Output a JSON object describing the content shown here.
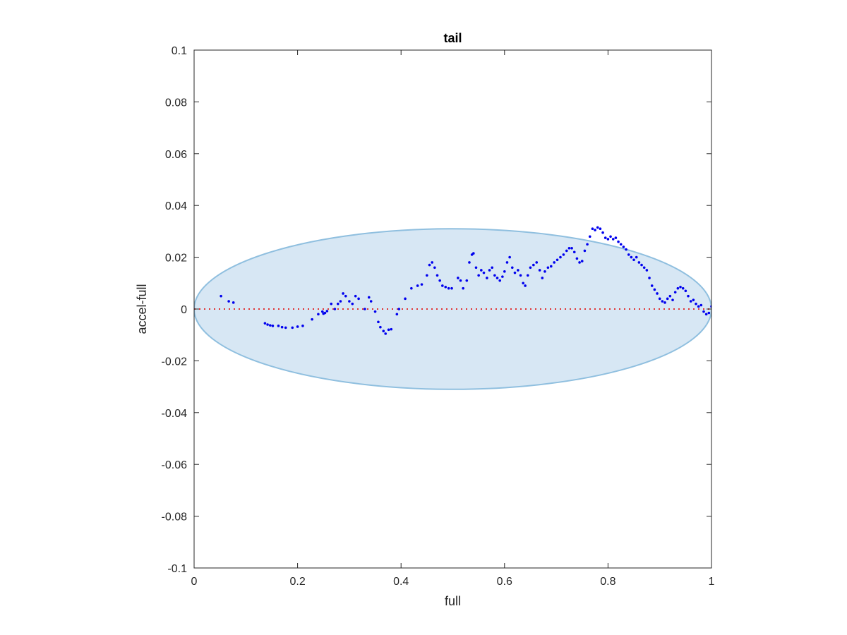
{
  "chart_data": {
    "type": "scatter",
    "title": "tail",
    "xlabel": "full",
    "ylabel": "accel-full",
    "xlim": [
      0,
      1
    ],
    "ylim": [
      -0.1,
      0.1
    ],
    "xticks": [
      0,
      0.2,
      0.4,
      0.6,
      0.8,
      1
    ],
    "xtick_labels": [
      "0",
      "0.2",
      "0.4",
      "0.6",
      "0.8",
      "1"
    ],
    "yticks": [
      -0.1,
      -0.08,
      -0.06,
      -0.04,
      -0.02,
      0,
      0.02,
      0.04,
      0.06,
      0.08,
      0.1
    ],
    "ytick_labels": [
      "-0.1",
      "-0.08",
      "-0.06",
      "-0.04",
      "-0.02",
      "0",
      "0.02",
      "0.04",
      "0.06",
      "0.08",
      "0.1"
    ],
    "grid": false,
    "reference_line": {
      "y": 0,
      "color": "#e03030",
      "style": "dotted"
    },
    "ellipse": {
      "cx": 0.5,
      "cy": 0,
      "rx": 0.5,
      "ry": 0.031,
      "fill": "#d7e7f4",
      "stroke": "#8fbfdf"
    },
    "point_color": "#0000ee",
    "points": [
      [
        0.052,
        0.005
      ],
      [
        0.067,
        0.003
      ],
      [
        0.076,
        0.0025
      ],
      [
        0.137,
        -0.0055
      ],
      [
        0.142,
        -0.006
      ],
      [
        0.147,
        -0.0063
      ],
      [
        0.152,
        -0.0065
      ],
      [
        0.163,
        -0.0065
      ],
      [
        0.17,
        -0.007
      ],
      [
        0.177,
        -0.0072
      ],
      [
        0.19,
        -0.0072
      ],
      [
        0.2,
        -0.0068
      ],
      [
        0.21,
        -0.0065
      ],
      [
        0.228,
        -0.004
      ],
      [
        0.24,
        -0.002
      ],
      [
        0.248,
        -0.001
      ],
      [
        0.25,
        -0.0018
      ],
      [
        0.253,
        -0.0015
      ],
      [
        0.257,
        -0.0008
      ],
      [
        0.265,
        0.002
      ],
      [
        0.272,
        0.0
      ],
      [
        0.278,
        0.002
      ],
      [
        0.283,
        0.003
      ],
      [
        0.288,
        0.006
      ],
      [
        0.293,
        0.005
      ],
      [
        0.3,
        0.003
      ],
      [
        0.306,
        0.002
      ],
      [
        0.312,
        0.005
      ],
      [
        0.318,
        0.004
      ],
      [
        0.33,
        0.0
      ],
      [
        0.338,
        0.0045
      ],
      [
        0.342,
        0.003
      ],
      [
        0.35,
        -0.001
      ],
      [
        0.356,
        -0.005
      ],
      [
        0.36,
        -0.007
      ],
      [
        0.366,
        -0.0085
      ],
      [
        0.37,
        -0.0095
      ],
      [
        0.376,
        -0.008
      ],
      [
        0.381,
        -0.0078
      ],
      [
        0.392,
        -0.002
      ],
      [
        0.396,
        0.0
      ],
      [
        0.408,
        0.004
      ],
      [
        0.42,
        0.008
      ],
      [
        0.432,
        0.009
      ],
      [
        0.44,
        0.0095
      ],
      [
        0.45,
        0.013
      ],
      [
        0.455,
        0.017
      ],
      [
        0.46,
        0.018
      ],
      [
        0.465,
        0.016
      ],
      [
        0.47,
        0.013
      ],
      [
        0.475,
        0.011
      ],
      [
        0.48,
        0.009
      ],
      [
        0.486,
        0.0085
      ],
      [
        0.492,
        0.008
      ],
      [
        0.498,
        0.008
      ],
      [
        0.51,
        0.012
      ],
      [
        0.515,
        0.011
      ],
      [
        0.52,
        0.008
      ],
      [
        0.527,
        0.011
      ],
      [
        0.532,
        0.018
      ],
      [
        0.537,
        0.021
      ],
      [
        0.54,
        0.0215
      ],
      [
        0.545,
        0.016
      ],
      [
        0.55,
        0.013
      ],
      [
        0.555,
        0.015
      ],
      [
        0.56,
        0.014
      ],
      [
        0.566,
        0.012
      ],
      [
        0.571,
        0.015
      ],
      [
        0.576,
        0.016
      ],
      [
        0.581,
        0.013
      ],
      [
        0.586,
        0.012
      ],
      [
        0.591,
        0.011
      ],
      [
        0.596,
        0.0125
      ],
      [
        0.6,
        0.0145
      ],
      [
        0.605,
        0.018
      ],
      [
        0.61,
        0.02
      ],
      [
        0.615,
        0.016
      ],
      [
        0.62,
        0.014
      ],
      [
        0.626,
        0.015
      ],
      [
        0.631,
        0.013
      ],
      [
        0.636,
        0.01
      ],
      [
        0.64,
        0.009
      ],
      [
        0.645,
        0.013
      ],
      [
        0.65,
        0.016
      ],
      [
        0.656,
        0.017
      ],
      [
        0.662,
        0.018
      ],
      [
        0.668,
        0.015
      ],
      [
        0.673,
        0.012
      ],
      [
        0.678,
        0.0145
      ],
      [
        0.684,
        0.016
      ],
      [
        0.69,
        0.0165
      ],
      [
        0.696,
        0.018
      ],
      [
        0.702,
        0.019
      ],
      [
        0.708,
        0.02
      ],
      [
        0.714,
        0.021
      ],
      [
        0.72,
        0.0225
      ],
      [
        0.725,
        0.0235
      ],
      [
        0.73,
        0.0235
      ],
      [
        0.735,
        0.022
      ],
      [
        0.74,
        0.0195
      ],
      [
        0.745,
        0.018
      ],
      [
        0.75,
        0.0185
      ],
      [
        0.755,
        0.0225
      ],
      [
        0.76,
        0.025
      ],
      [
        0.765,
        0.028
      ],
      [
        0.77,
        0.031
      ],
      [
        0.775,
        0.0305
      ],
      [
        0.78,
        0.0315
      ],
      [
        0.785,
        0.031
      ],
      [
        0.79,
        0.0295
      ],
      [
        0.795,
        0.0275
      ],
      [
        0.8,
        0.027
      ],
      [
        0.805,
        0.028
      ],
      [
        0.81,
        0.027
      ],
      [
        0.815,
        0.0275
      ],
      [
        0.82,
        0.026
      ],
      [
        0.825,
        0.025
      ],
      [
        0.83,
        0.024
      ],
      [
        0.835,
        0.023
      ],
      [
        0.84,
        0.021
      ],
      [
        0.845,
        0.02
      ],
      [
        0.85,
        0.019
      ],
      [
        0.855,
        0.02
      ],
      [
        0.86,
        0.018
      ],
      [
        0.865,
        0.017
      ],
      [
        0.87,
        0.016
      ],
      [
        0.875,
        0.015
      ],
      [
        0.88,
        0.012
      ],
      [
        0.885,
        0.009
      ],
      [
        0.89,
        0.0075
      ],
      [
        0.895,
        0.006
      ],
      [
        0.9,
        0.004
      ],
      [
        0.905,
        0.003
      ],
      [
        0.91,
        0.0025
      ],
      [
        0.915,
        0.004
      ],
      [
        0.92,
        0.005
      ],
      [
        0.925,
        0.0035
      ],
      [
        0.93,
        0.0065
      ],
      [
        0.935,
        0.008
      ],
      [
        0.94,
        0.0085
      ],
      [
        0.945,
        0.008
      ],
      [
        0.95,
        0.007
      ],
      [
        0.955,
        0.005
      ],
      [
        0.96,
        0.003
      ],
      [
        0.965,
        0.0035
      ],
      [
        0.97,
        0.002
      ],
      [
        0.975,
        0.001
      ],
      [
        0.98,
        0.0015
      ],
      [
        0.985,
        -0.001
      ],
      [
        0.99,
        -0.002
      ],
      [
        0.995,
        -0.0015
      ],
      [
        1.0,
        0.001
      ]
    ]
  }
}
